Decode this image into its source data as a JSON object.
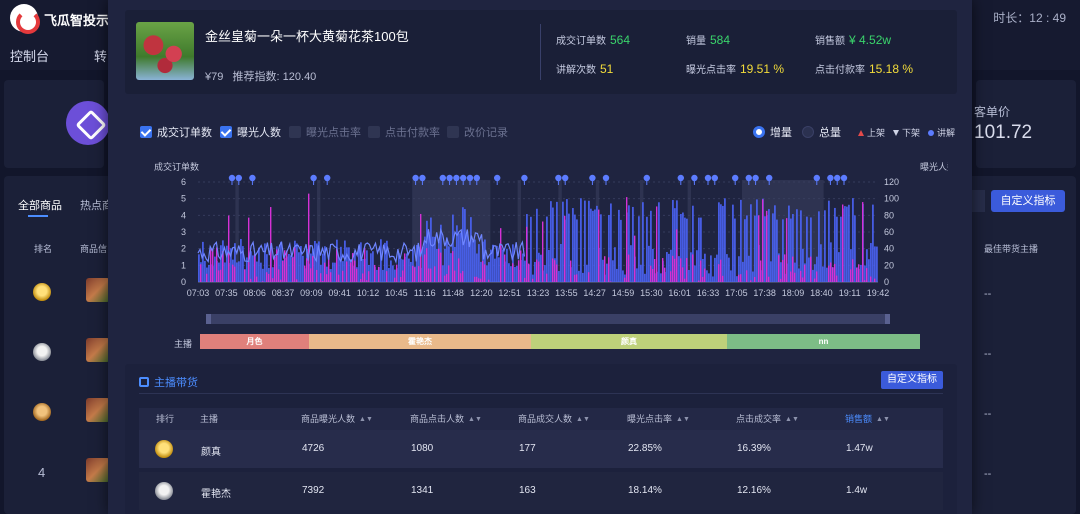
{
  "app": {
    "name": "飞瓜智投示",
    "timer": "时长：12 : 49"
  },
  "nav": {
    "dashboard": "控制台",
    "second": "转"
  },
  "background": {
    "tabs": {
      "all": "全部商品",
      "hot": "热点商"
    },
    "columns": {
      "rank": "排名",
      "product": "商品信",
      "best_host": "最佳带货主播"
    },
    "stat_label": "客单价",
    "stat_value": "101.72",
    "custom_button": "自定义指标",
    "rank4": "4",
    "dash": "--"
  },
  "product": {
    "name": "金丝皇菊一朵一杯大黄菊花茶100包",
    "price": "¥79",
    "recommend_label": "推荐指数:",
    "recommend_value": "120.40",
    "stats": [
      {
        "label": "成交订单数",
        "value": "564",
        "color": "green"
      },
      {
        "label": "销量",
        "value": "584",
        "color": "green"
      },
      {
        "label": "销售额",
        "value": "¥ 4.52w",
        "color": "green"
      },
      {
        "label": "讲解次数",
        "value": "51",
        "color": "yellow"
      },
      {
        "label": "曝光点击率",
        "value": "19.51 %",
        "color": "yellow"
      },
      {
        "label": "点击付款率",
        "value": "15.18 %",
        "color": "yellow"
      }
    ]
  },
  "legend": {
    "checks": [
      {
        "label": "成交订单数",
        "checked": true
      },
      {
        "label": "曝光人数",
        "checked": true
      },
      {
        "label": "曝光点击率",
        "checked": false
      },
      {
        "label": "点击付款率",
        "checked": false
      },
      {
        "label": "改价记录",
        "checked": false
      }
    ],
    "radios": [
      {
        "label": "增量",
        "selected": true
      },
      {
        "label": "总量",
        "selected": false
      }
    ],
    "marks": {
      "up": "上架",
      "down": "下架",
      "explain": "讲解"
    }
  },
  "chart_data": {
    "type": "bar",
    "y_left_label": "成交订单数",
    "y_right_label": "曝光人数",
    "y_left_ticks": [
      0,
      1,
      2,
      3,
      4,
      5,
      6
    ],
    "y_right_ticks": [
      0,
      20,
      40,
      60,
      80,
      100,
      120
    ],
    "x_ticks": [
      "07:03",
      "07:35",
      "08:06",
      "08:37",
      "09:09",
      "09:41",
      "10:12",
      "10:45",
      "11:16",
      "11:48",
      "12:20",
      "12:51",
      "13:23",
      "13:55",
      "14:27",
      "14:59",
      "15:30",
      "16:01",
      "16:33",
      "17:05",
      "17:38",
      "18:09",
      "18:40",
      "19:11",
      "19:42"
    ],
    "series": [
      {
        "name": "成交订单数",
        "color": "#d531d6"
      },
      {
        "name": "曝光人数",
        "color": "#4a63f5"
      }
    ],
    "explain_markers": [
      0.05,
      0.06,
      0.08,
      0.17,
      0.19,
      0.32,
      0.33,
      0.36,
      0.37,
      0.38,
      0.39,
      0.4,
      0.41,
      0.44,
      0.48,
      0.53,
      0.54,
      0.58,
      0.6,
      0.66,
      0.71,
      0.73,
      0.75,
      0.76,
      0.79,
      0.81,
      0.82,
      0.84,
      0.91,
      0.93,
      0.94,
      0.95
    ]
  },
  "anchor": {
    "label": "主播",
    "segments": [
      {
        "name": "月色",
        "share": 0.151,
        "color": "#e0807b"
      },
      {
        "name": "霍艳杰",
        "share": 0.309,
        "color": "#e9b98a"
      },
      {
        "name": "颜真",
        "share": 0.272,
        "color": "#bed17a"
      },
      {
        "name": "nn",
        "share": 0.268,
        "color": "#7dbd86"
      }
    ]
  },
  "hosts": {
    "title": "主播带货",
    "custom_button": "自定义指标",
    "columns": [
      "排行",
      "主播",
      "商品曝光人数",
      "商品点击人数",
      "商品成交人数",
      "曝光点击率",
      "点击成交率",
      "销售额"
    ],
    "rows": [
      {
        "medal": "gold",
        "name": "颜真",
        "exposure": "4726",
        "clicks": "1080",
        "deals": "177",
        "ctr": "22.85%",
        "cvr": "16.39%",
        "sales": "1.47w"
      },
      {
        "medal": "silver",
        "name": "霍艳杰",
        "exposure": "7392",
        "clicks": "1341",
        "deals": "163",
        "ctr": "18.14%",
        "cvr": "12.16%",
        "sales": "1.4w"
      }
    ]
  }
}
